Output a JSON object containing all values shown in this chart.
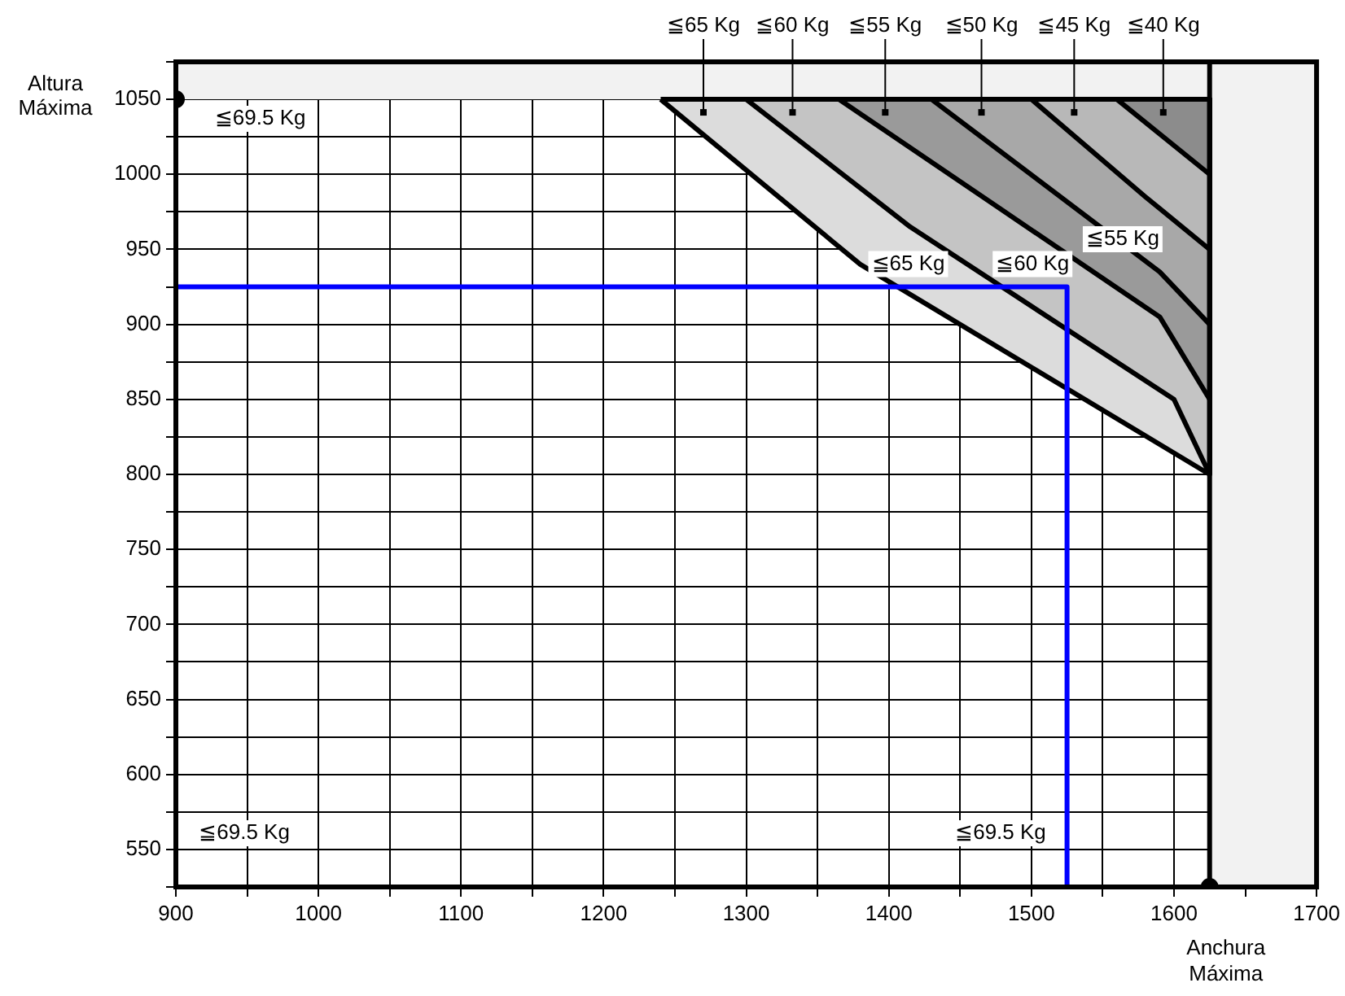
{
  "chart_data": {
    "type": "line",
    "xlabel": "Anchura Máxima",
    "ylabel": "Altura Máxima",
    "xlim": [
      900,
      1700
    ],
    "ylim": [
      525,
      1075
    ],
    "xticks": [
      900,
      {
        "value": 950,
        "label": null
      },
      1000,
      {
        "value": 1050,
        "label": null
      },
      1100,
      {
        "value": 1150,
        "label": null
      },
      1200,
      {
        "value": 1250,
        "label": null
      },
      1300,
      {
        "value": 1350,
        "label": null
      },
      1400,
      {
        "value": 1450,
        "label": null
      },
      1500,
      {
        "value": 1550,
        "label": null
      },
      1600,
      {
        "value": 1650,
        "label": null
      },
      1700
    ],
    "yticks": [
      {
        "value": 525,
        "label": null
      },
      550,
      {
        "value": 575,
        "label": null
      },
      600,
      {
        "value": 625,
        "label": null
      },
      650,
      {
        "value": 675,
        "label": null
      },
      700,
      {
        "value": 725,
        "label": null
      },
      750,
      {
        "value": 775,
        "label": null
      },
      800,
      {
        "value": 825,
        "label": null
      },
      850,
      {
        "value": 875,
        "label": null
      },
      900,
      {
        "value": 925,
        "label": null
      },
      950,
      {
        "value": 975,
        "label": null
      },
      1000,
      {
        "value": 1025,
        "label": null
      },
      1050,
      {
        "value": 1075,
        "label": null
      }
    ],
    "grid": true,
    "legend": false,
    "series": [
      {
        "name": "≦65 Kg",
        "type": "area",
        "color": "#dcdcdc",
        "x": [
          1240,
          1380,
          1625,
          1625,
          1240
        ],
        "values": [
          1050,
          940,
          800,
          1050,
          1050
        ]
      },
      {
        "name": "≦60 Kg",
        "type": "area",
        "color": "#c4c4c4",
        "x": [
          1300,
          1415,
          1600,
          1625,
          1625,
          1300
        ],
        "values": [
          1050,
          965,
          850,
          800,
          1050,
          1050
        ]
      },
      {
        "name": "≦55 Kg",
        "type": "area",
        "color": "#9a9a9a",
        "x": [
          1365,
          1590,
          1625,
          1625,
          1365
        ],
        "values": [
          1050,
          905,
          850,
          1050,
          1050
        ]
      },
      {
        "name": "≦50 Kg",
        "type": "area",
        "color": "#a8a8a8",
        "x": [
          1430,
          1590,
          1625,
          1625,
          1430
        ],
        "values": [
          1050,
          935,
          900,
          1050,
          1050
        ]
      },
      {
        "name": "≦45 Kg",
        "type": "area",
        "color": "#b8b8b8",
        "x": [
          1500,
          1580,
          1625,
          1625,
          1500
        ],
        "values": [
          1050,
          985,
          950,
          1050,
          1050
        ]
      },
      {
        "name": "≦40 Kg",
        "type": "area",
        "color": "#8c8c8c",
        "x": [
          1560,
          1625,
          1625,
          1560
        ],
        "values": [
          1050,
          1000,
          1050,
          1050
        ]
      },
      {
        "type": "line",
        "color": "#0000ff",
        "x": [
          900,
          1525,
          1525
        ],
        "values": [
          925,
          925,
          525
        ]
      },
      {
        "type": "scatter",
        "color": "#000000",
        "marker": "circle",
        "x": [
          900,
          1625
        ],
        "values": [
          1050,
          525
        ]
      }
    ],
    "ref_lines": [
      {
        "axis": "x",
        "value": 1625,
        "color": "#000000"
      }
    ],
    "bands": [
      {
        "axis": "y",
        "from": 1050,
        "to": 1075,
        "color": "#f2f2f2"
      },
      {
        "axis": "x",
        "from": 1625,
        "to": 1700,
        "color": "#f2f2f2"
      }
    ],
    "annotations": [
      "≦69.5 Kg",
      "≦69.5 Kg",
      "≦69.5 Kg",
      "≦65 Kg",
      "≦60 Kg",
      "≦55 Kg"
    ]
  }
}
